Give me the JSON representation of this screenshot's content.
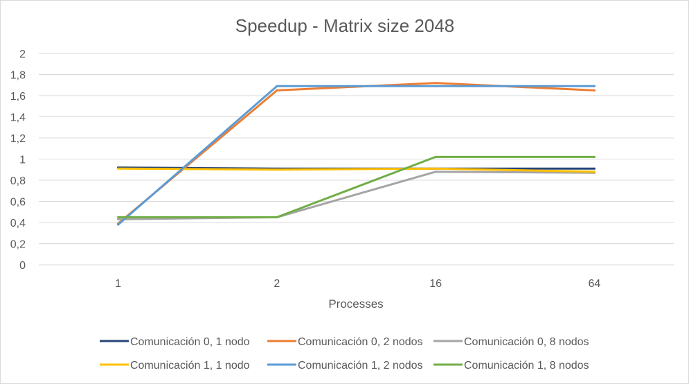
{
  "chart_data": {
    "type": "line",
    "title": "Speedup - Matrix size 2048",
    "xlabel": "Processes",
    "ylabel": "",
    "categories": [
      "1",
      "2",
      "16",
      "64"
    ],
    "ylim": [
      0,
      2
    ],
    "ytick_step": 0.2,
    "ytick_labels": [
      "0",
      "0,2",
      "0,4",
      "0,6",
      "0,8",
      "1",
      "1,2",
      "1,4",
      "1,6",
      "1,8",
      "2"
    ],
    "grid": true,
    "legend_position": "bottom",
    "series": [
      {
        "name": "Comunicación 0, 1 nodo",
        "color": "#264478",
        "values": [
          0.92,
          0.91,
          0.91,
          0.91
        ]
      },
      {
        "name": "Comunicación 0, 2 nodos",
        "color": "#ED7D31",
        "values": [
          0.39,
          1.65,
          1.72,
          1.65
        ]
      },
      {
        "name": "Comunicación 0, 8 nodos",
        "color": "#A5A5A5",
        "values": [
          0.43,
          0.45,
          0.88,
          0.87
        ]
      },
      {
        "name": "Comunicación 1, 1 nodo",
        "color": "#FFC000",
        "values": [
          0.91,
          0.9,
          0.91,
          0.88
        ]
      },
      {
        "name": "Comunicación 1, 2 nodos",
        "color": "#5B9BD5",
        "values": [
          0.38,
          1.69,
          1.69,
          1.69
        ]
      },
      {
        "name": "Comunicación 1, 8 nodos",
        "color": "#70AD47",
        "values": [
          0.45,
          0.45,
          1.02,
          1.02
        ]
      }
    ]
  }
}
